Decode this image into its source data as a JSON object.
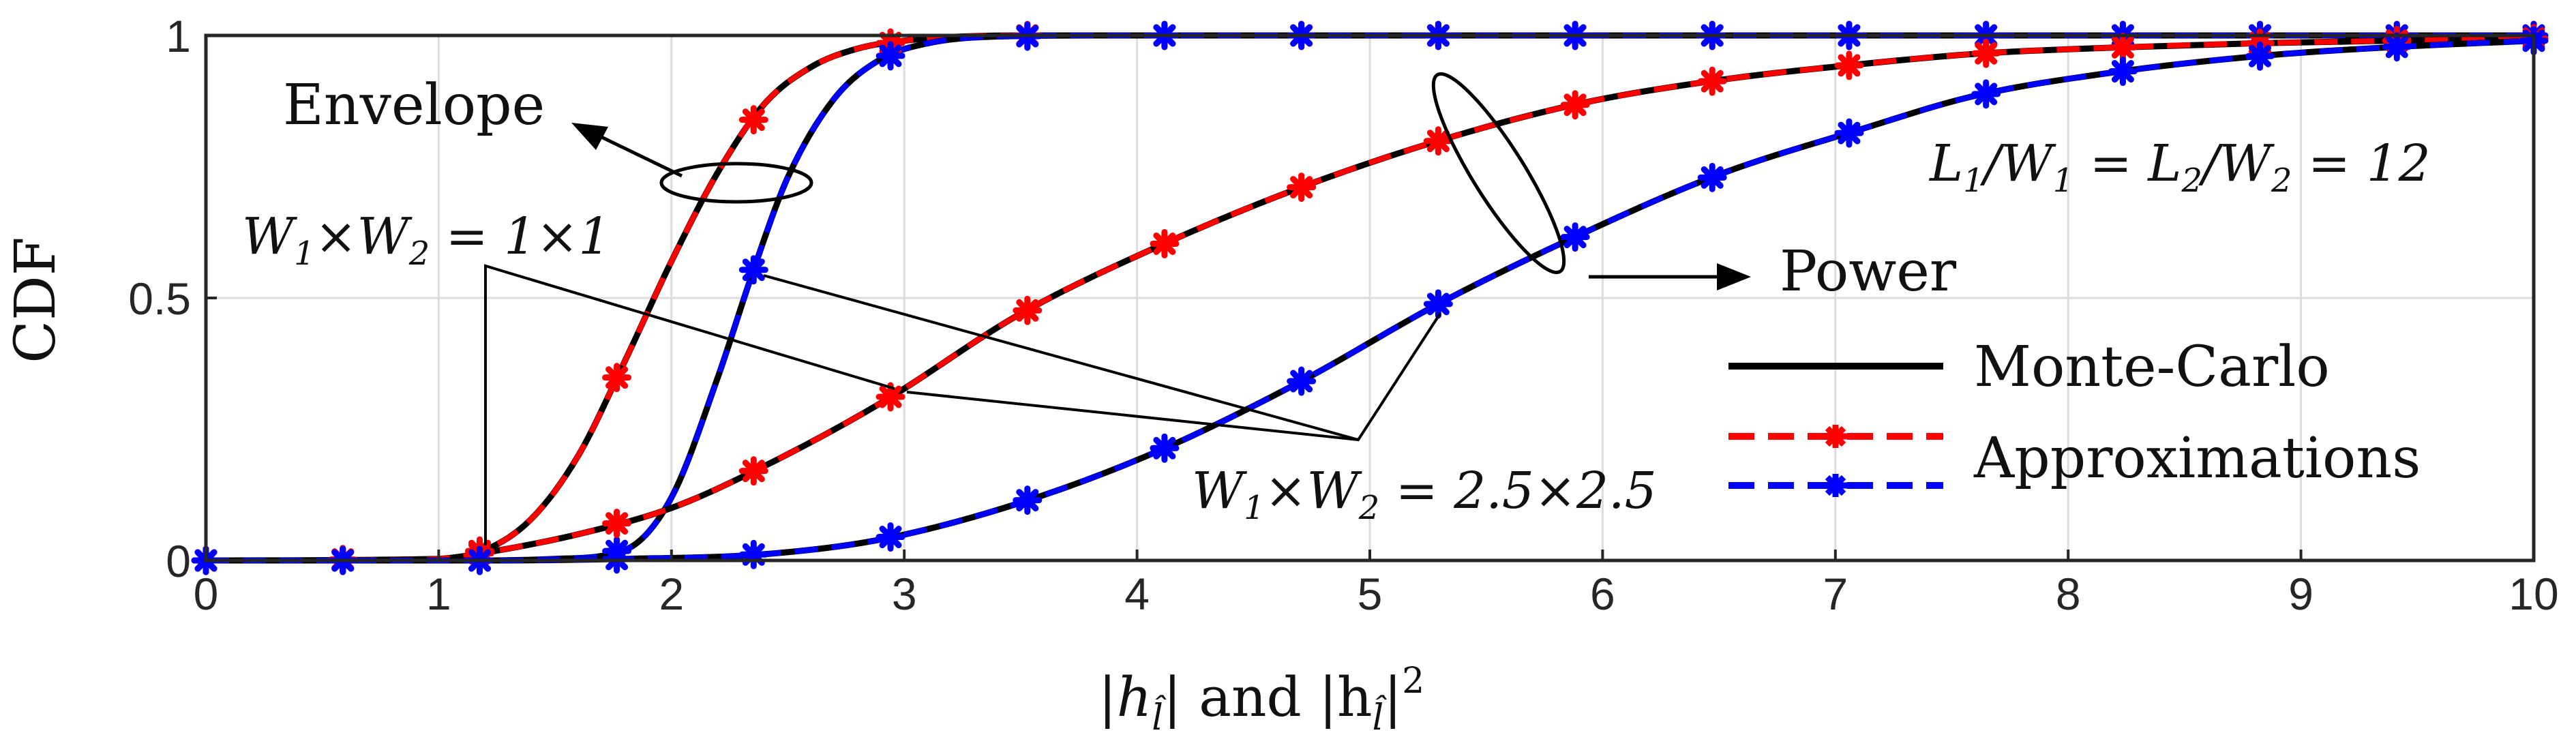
{
  "chart_data": {
    "type": "line",
    "title": "",
    "xlabel_parts": [
      "|h",
      "l̂",
      "| and |h",
      "l̂",
      "|",
      "2"
    ],
    "ylabel": "CDF",
    "xlim": [
      0,
      10
    ],
    "ylim": [
      0,
      1
    ],
    "x_ticks": [
      "0",
      "1",
      "2",
      "3",
      "4",
      "5",
      "6",
      "7",
      "8",
      "9",
      "10"
    ],
    "y_ticks": [
      "0",
      "0.5",
      "1"
    ],
    "grid": true,
    "legend_position": "bottom-right",
    "legend": [
      {
        "label": "Monte-Carlo",
        "color": "#000000",
        "style": "solid"
      },
      {
        "label": "Approximations",
        "color": "#ff0000",
        "style": "dashed",
        "marker": "asterisk"
      },
      {
        "label": "",
        "color": "#0000ff",
        "style": "dashed",
        "marker": "asterisk"
      }
    ],
    "annotations": {
      "envelope": "Envelope",
      "power": "Power",
      "ratio": {
        "parts": [
          "L",
          "1",
          "/W",
          "1",
          " = L",
          "2",
          "/W",
          "2",
          " = 12"
        ]
      },
      "w_small": {
        "parts": [
          "W",
          "1",
          "×W",
          "2",
          " = 1×1"
        ]
      },
      "w_large": {
        "parts": [
          "W",
          "1",
          "×W",
          "2",
          " = 2.5×2.5"
        ]
      }
    },
    "marker_x": [
      0,
      0.588,
      1.176,
      1.765,
      2.353,
      2.941,
      3.529,
      4.118,
      4.706,
      5.294,
      5.882,
      6.471,
      7.059,
      7.647,
      8.235,
      8.824,
      9.412,
      10.0
    ],
    "series": [
      {
        "group": "envelope",
        "size": "1x1",
        "color": "#ff0000",
        "x": [
          0,
          1.0,
          1.2,
          1.4,
          1.6,
          1.8,
          2.0,
          2.2,
          2.4,
          2.6,
          2.8,
          3.0,
          3.2,
          3.5,
          10
        ],
        "y": [
          0,
          0.003,
          0.02,
          0.08,
          0.2,
          0.38,
          0.57,
          0.74,
          0.87,
          0.94,
          0.975,
          0.99,
          0.997,
          1.0,
          1.0
        ]
      },
      {
        "group": "envelope",
        "size": "2.5x2.5",
        "color": "#0000ff",
        "x": [
          0,
          1.2,
          1.5,
          1.8,
          2.0,
          2.2,
          2.35,
          2.5,
          2.7,
          2.9,
          3.1,
          3.4,
          3.8,
          10
        ],
        "y": [
          0,
          0.0,
          0.003,
          0.02,
          0.12,
          0.35,
          0.55,
          0.73,
          0.88,
          0.955,
          0.985,
          0.998,
          1.0,
          1.0
        ]
      },
      {
        "group": "power",
        "size": "1x1",
        "color": "#ff0000",
        "x": [
          0,
          0.6,
          1.0,
          1.2,
          1.6,
          2.0,
          2.4,
          2.9,
          3.5,
          4.1,
          4.7,
          5.3,
          5.9,
          6.5,
          7.1,
          7.6,
          8.2,
          8.8,
          9.4,
          10
        ],
        "y": [
          0,
          0.0,
          0.003,
          0.015,
          0.05,
          0.1,
          0.18,
          0.3,
          0.47,
          0.6,
          0.71,
          0.8,
          0.87,
          0.915,
          0.945,
          0.965,
          0.977,
          0.985,
          0.99,
          0.994
        ]
      },
      {
        "group": "power",
        "size": "2.5x2.5",
        "color": "#0000ff",
        "x": [
          0,
          1.2,
          1.8,
          2.4,
          2.9,
          3.5,
          4.1,
          4.7,
          5.3,
          5.9,
          6.5,
          7.1,
          7.6,
          8.2,
          8.8,
          9.4,
          10
        ],
        "y": [
          0,
          0.0,
          0.003,
          0.012,
          0.04,
          0.11,
          0.21,
          0.34,
          0.49,
          0.62,
          0.735,
          0.82,
          0.885,
          0.93,
          0.96,
          0.978,
          0.99
        ]
      }
    ]
  }
}
